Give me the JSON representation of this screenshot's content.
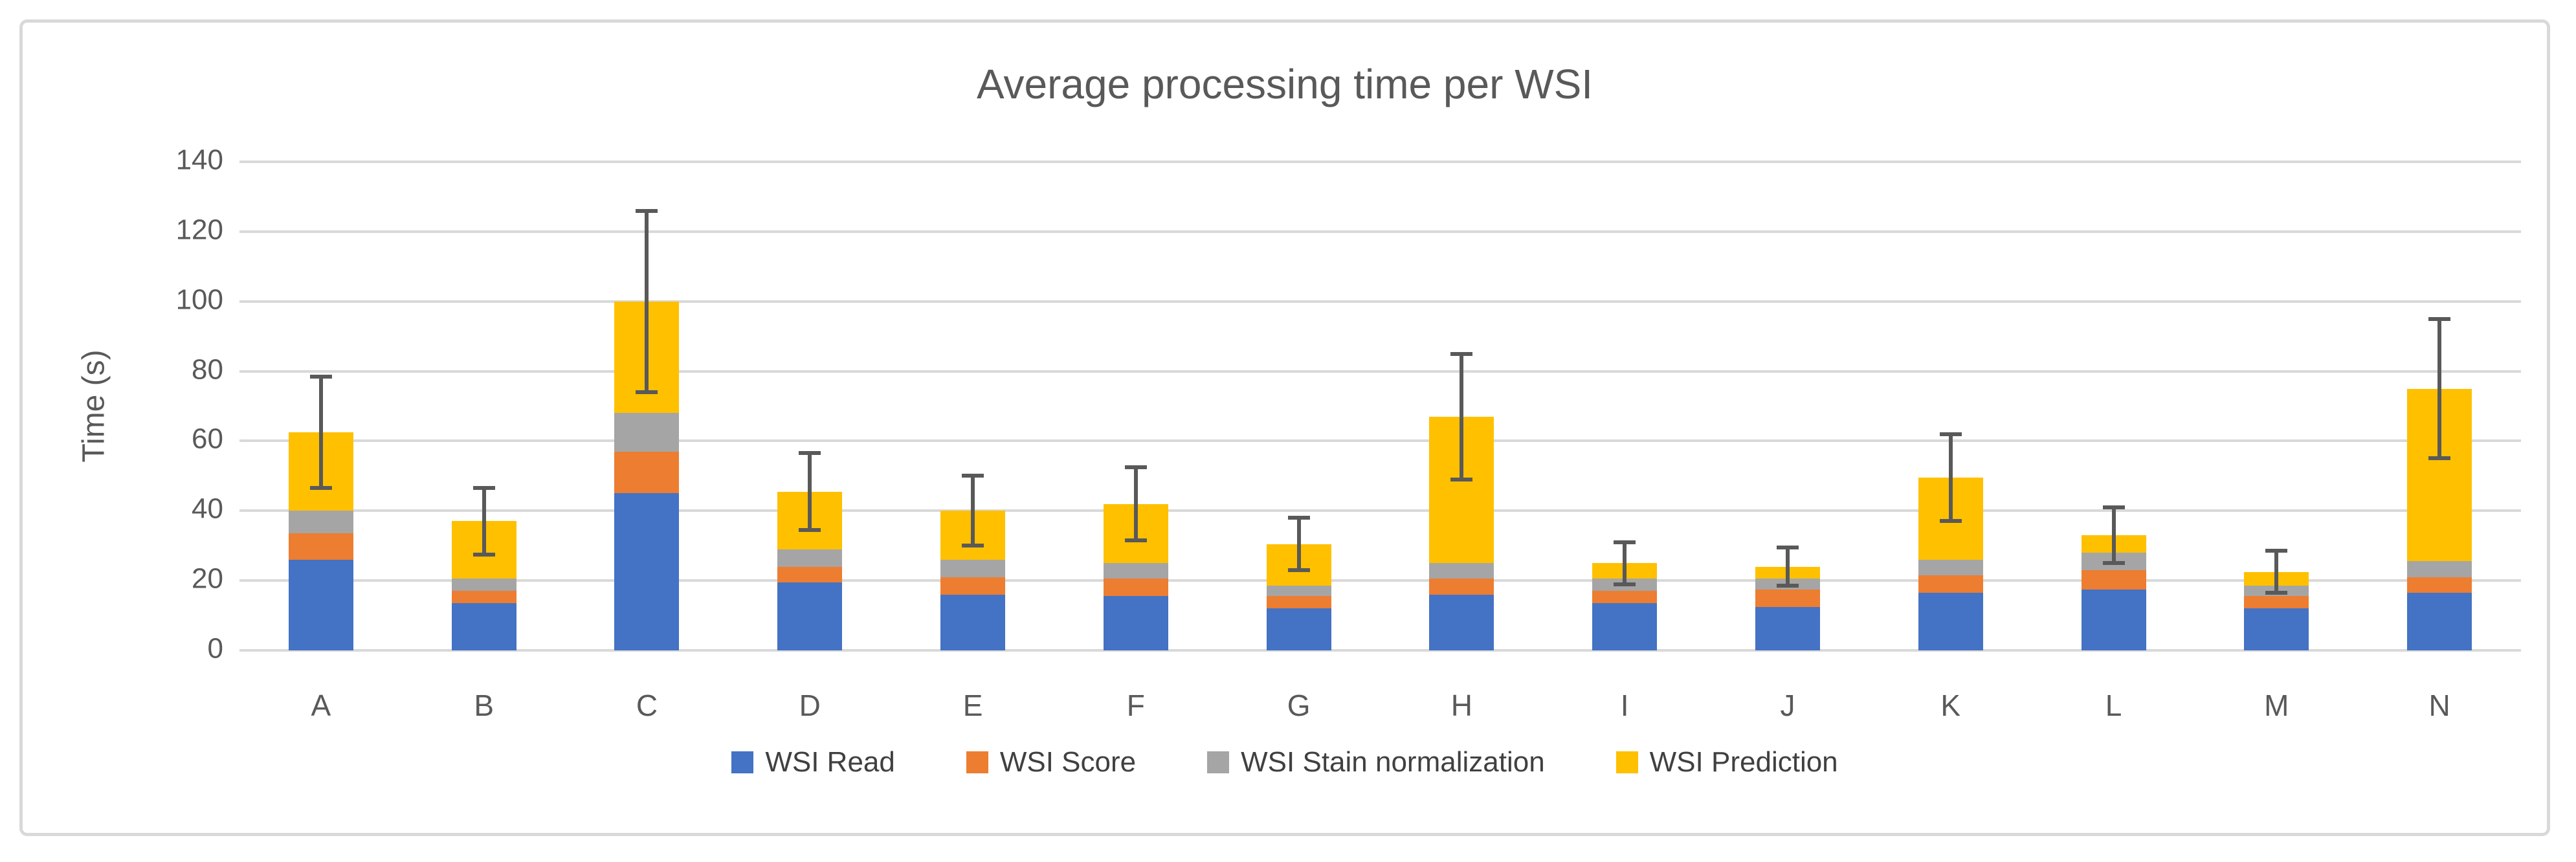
{
  "chart_title": "Average processing time per WSI",
  "chart_data": {
    "type": "bar",
    "stacked": true,
    "orientation": "vertical",
    "title": "Average processing time per WSI",
    "xlabel": "",
    "ylabel": "Time (s)",
    "categories": [
      "A",
      "B",
      "C",
      "D",
      "E",
      "F",
      "G",
      "H",
      "I",
      "J",
      "K",
      "L",
      "M",
      "N"
    ],
    "series": [
      {
        "name": "WSI Read",
        "color": "#4472C4",
        "values": [
          26,
          13.5,
          45,
          19.5,
          16,
          15.5,
          12,
          16,
          13.5,
          12.5,
          16.5,
          17.5,
          12,
          16.5
        ]
      },
      {
        "name": "WSI Score",
        "color": "#ED7D31",
        "values": [
          7.5,
          3.5,
          12,
          4.5,
          5,
          5,
          3.5,
          4.5,
          3.5,
          5,
          5,
          5.5,
          3.5,
          4.5
        ]
      },
      {
        "name": "WSI Stain normalization",
        "color": "#A5A5A5",
        "values": [
          6.5,
          3.5,
          11,
          5,
          5,
          4.5,
          3,
          4.5,
          3.5,
          3,
          4.5,
          5,
          3,
          4.5
        ]
      },
      {
        "name": "WSI Prediction",
        "color": "#FFC000",
        "values": [
          22.5,
          16.5,
          32,
          16.5,
          14,
          17,
          12,
          42,
          4.5,
          3.5,
          23.5,
          5,
          4,
          49.5
        ]
      }
    ],
    "stack_totals": [
      62.5,
      37,
      100,
      45.5,
      40,
      42,
      30.5,
      67,
      25,
      24,
      49.5,
      33,
      22.5,
      75
    ],
    "error_bars": {
      "plus_minus": [
        16,
        9.5,
        26,
        11,
        10,
        10.5,
        7.5,
        18,
        6,
        5.5,
        12.5,
        8,
        6,
        20
      ],
      "color": "#595959"
    },
    "y_ticks": [
      0,
      20,
      40,
      60,
      80,
      100,
      120,
      140
    ],
    "y_tick_labels": [
      "0",
      "20",
      "40",
      "60",
      "80",
      "100",
      "120",
      "140"
    ],
    "ylim": [
      0,
      140
    ],
    "grid": true,
    "gridline_color": "#D9D9D9",
    "legend_position": "bottom",
    "legend_entries": [
      "WSI Read",
      "WSI Score",
      "WSI Stain normalization",
      "WSI Prediction"
    ]
  },
  "colors": {
    "text": "#595959",
    "frame_border": "#D9D9D9",
    "background": "#FFFFFF"
  }
}
